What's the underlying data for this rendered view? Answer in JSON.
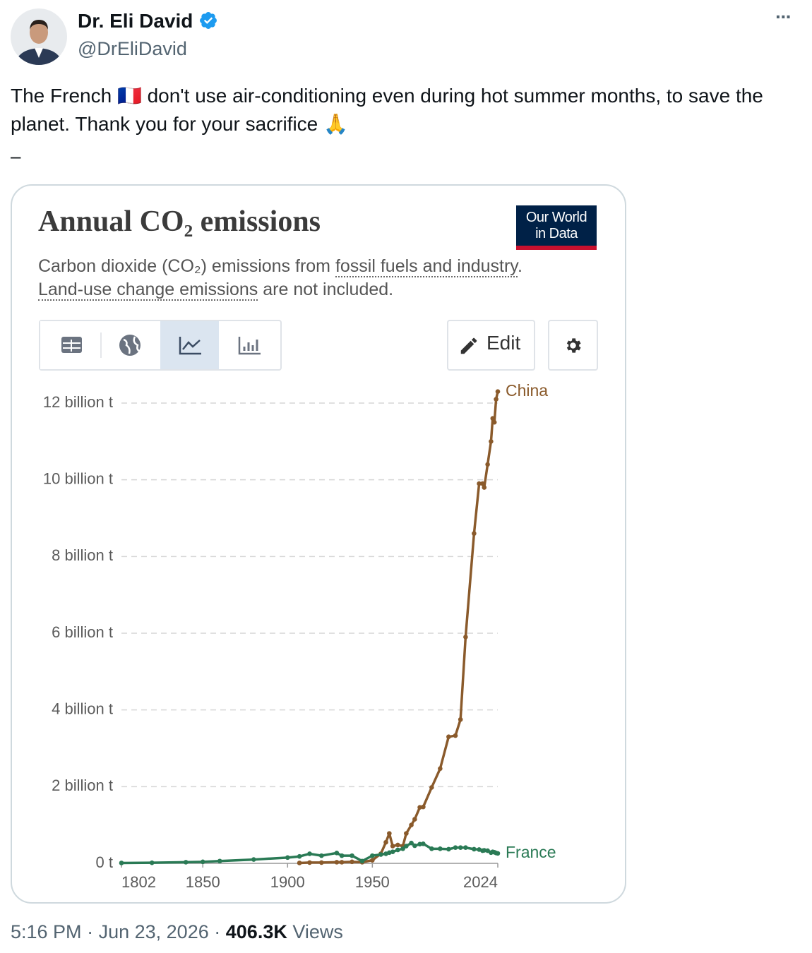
{
  "tweet": {
    "author_name": "Dr. Eli David",
    "handle": "@DrEliDavid",
    "more_menu": "···",
    "text": "The French 🇫🇷 don't use air-conditioning even during hot summer months, to save the planet. Thank you for your sacrifice 🙏",
    "text_tail": "–",
    "time": "5:16 PM",
    "separator": "·",
    "date": "Jun 23, 2026",
    "views_count": "406.3K",
    "views_label": "Views"
  },
  "embed": {
    "logo_lines": [
      "Our World",
      "in Data"
    ],
    "edit_label": "Edit"
  },
  "chart_data": {
    "type": "line",
    "title": "Annual CO₂ emissions",
    "subtitle": [
      "Carbon dioxide (CO₂) emissions from ",
      "fossil fuels and industry",
      ". ",
      "Land-use change emissions",
      " are not included."
    ],
    "x": [
      1802,
      1820,
      1840,
      1850,
      1860,
      1880,
      1900,
      1907,
      1913,
      1920,
      1929,
      1932,
      1938,
      1944,
      1950,
      1955,
      1958,
      1960,
      1962,
      1965,
      1968,
      1970,
      1973,
      1975,
      1978,
      1980,
      1985,
      1990,
      1995,
      1999,
      2002,
      2005,
      2010,
      2013,
      2015,
      2016,
      2018,
      2020,
      2021,
      2022,
      2023,
      2024
    ],
    "series": [
      {
        "name": "China",
        "color": "#8a5a2b",
        "values": [
          null,
          null,
          null,
          null,
          null,
          null,
          null,
          10000000,
          20000000,
          20000000,
          30000000,
          30000000,
          40000000,
          30000000,
          80000000,
          250000000,
          550000000,
          780000000,
          450000000,
          480000000,
          450000000,
          780000000,
          1000000000,
          1150000000,
          1460000000,
          1470000000,
          1980000000,
          2470000000,
          3300000000,
          3330000000,
          3750000000,
          5900000000,
          8600000000,
          9900000000,
          9900000000,
          9800000000,
          10400000000,
          11000000000,
          11600000000,
          11500000000,
          12100000000,
          12300000000
        ]
      },
      {
        "name": "France",
        "color": "#2a7a55",
        "values": [
          10000000,
          15000000,
          30000000,
          40000000,
          60000000,
          100000000,
          150000000,
          180000000,
          250000000,
          200000000,
          270000000,
          200000000,
          200000000,
          60000000,
          200000000,
          230000000,
          250000000,
          280000000,
          300000000,
          350000000,
          380000000,
          450000000,
          530000000,
          460000000,
          500000000,
          510000000,
          380000000,
          380000000,
          370000000,
          410000000,
          410000000,
          410000000,
          370000000,
          360000000,
          330000000,
          340000000,
          330000000,
          280000000,
          300000000,
          290000000,
          270000000,
          260000000
        ]
      }
    ],
    "xlim": [
      1802,
      2024
    ],
    "xticks": [
      1802,
      1850,
      1900,
      1950,
      2024
    ],
    "ylim": [
      0,
      12300000000
    ],
    "yticks": [
      {
        "value": 0,
        "label": "0 t"
      },
      {
        "value": 2000000000,
        "label": "2 billion t"
      },
      {
        "value": 4000000000,
        "label": "4 billion t"
      },
      {
        "value": 6000000000,
        "label": "6 billion t"
      },
      {
        "value": 8000000000,
        "label": "8 billion t"
      },
      {
        "value": 10000000000,
        "label": "10 billion t"
      },
      {
        "value": 12000000000,
        "label": "12 billion t"
      }
    ],
    "grid": true
  }
}
